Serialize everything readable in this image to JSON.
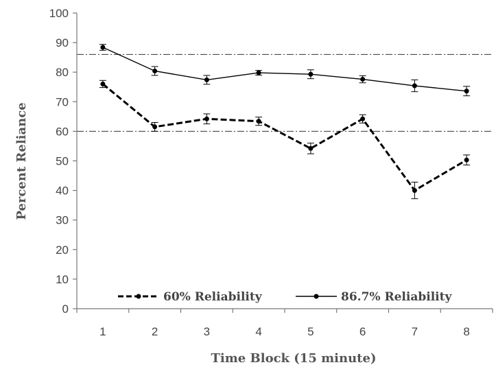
{
  "chart_data": {
    "type": "line",
    "xlabel": "Time Block (15 minute)",
    "ylabel": "Percent Reliance",
    "categories": [
      "1",
      "2",
      "3",
      "4",
      "5",
      "6",
      "7",
      "8"
    ],
    "ylim": [
      0,
      100
    ],
    "yticks": [
      0,
      10,
      20,
      30,
      40,
      50,
      60,
      70,
      80,
      90,
      100
    ],
    "series": [
      {
        "name": "60% Reliability",
        "style": "dashed",
        "values": [
          76,
          61.5,
          64.2,
          63.4,
          54.2,
          64.2,
          40,
          50.3
        ],
        "errors": [
          1.2,
          1.5,
          1.7,
          1.4,
          1.8,
          1.4,
          2.8,
          1.7
        ]
      },
      {
        "name": "86.7% Reliability",
        "style": "solid",
        "values": [
          88.4,
          80.4,
          77.4,
          79.8,
          79.3,
          77.6,
          75.4,
          73.6
        ],
        "errors": [
          1.0,
          1.5,
          1.5,
          0.8,
          1.5,
          1.2,
          2.0,
          1.6
        ]
      }
    ],
    "reference_lines": [
      60,
      86
    ],
    "grid": false,
    "legend_position": "bottom-inside",
    "colors": {
      "line": "#000000",
      "axis": "#777777",
      "text": "#444444",
      "reference": "#333333"
    }
  }
}
